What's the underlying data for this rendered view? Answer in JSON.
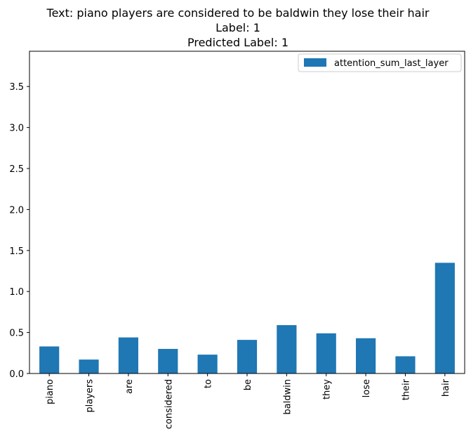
{
  "chart_data": {
    "type": "bar",
    "title_lines": [
      "Text: piano players are considered to be baldwin they lose their hair",
      "Label: 1",
      "Predicted Label: 1"
    ],
    "xlabel": "",
    "ylabel": "",
    "categories": [
      "piano",
      "players",
      "are",
      "considered",
      "to",
      "be",
      "baldwin",
      "they",
      "lose",
      "their",
      "hair"
    ],
    "series": [
      {
        "name": "attention_sum_last_layer",
        "color": "#1f77b4",
        "values": [
          0.33,
          0.17,
          0.44,
          0.3,
          0.23,
          0.41,
          0.59,
          0.49,
          0.43,
          0.21,
          1.35
        ]
      }
    ],
    "ylim": [
      0,
      3.93
    ],
    "yticks": [
      "0.0",
      "0.5",
      "1.0",
      "1.5",
      "2.0",
      "2.5",
      "3.0",
      "3.5"
    ],
    "grid": false,
    "legend_position": "top-right"
  }
}
